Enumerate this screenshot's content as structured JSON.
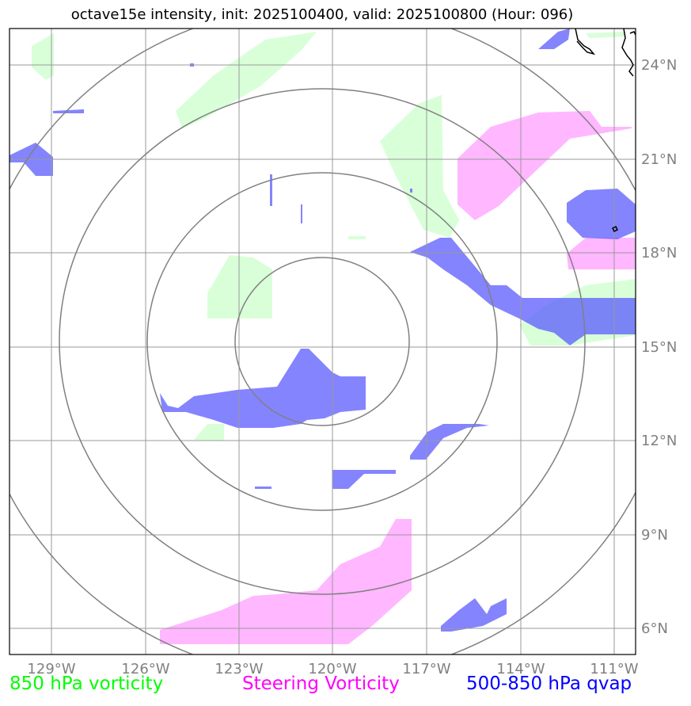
{
  "title": "octave15e intensity, init: 2025100400, valid: 2025100800 (Hour: 096)",
  "map": {
    "lon_ticks": [
      "129°W",
      "126°W",
      "123°W",
      "120°W",
      "117°W",
      "114°W",
      "111°W"
    ],
    "lat_ticks": [
      "24°N",
      "21°N",
      "18°N",
      "15°N",
      "12°N",
      "9°N",
      "6°N"
    ],
    "colors": {
      "vort850": "#ccffcc",
      "steering": "#ff99ff",
      "qvap": "#5555ff",
      "range_rings": "#808080",
      "grid": "#999999"
    }
  },
  "legend": {
    "vort850": {
      "label": "850 hPa vorticity",
      "color": "#00ff00"
    },
    "steering": {
      "label": "Steering Vorticity",
      "color": "#ff00ff"
    },
    "qvap": {
      "label": "500-850 hPa qvap",
      "color": "#0000ff"
    }
  }
}
